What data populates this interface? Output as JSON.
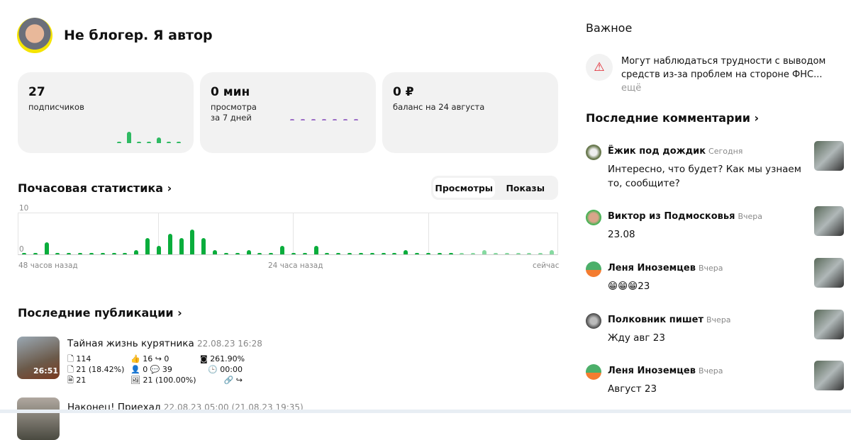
{
  "header": {
    "title": "Не блогер. Я автор"
  },
  "cards": [
    {
      "value": "27",
      "label": "подписчиков",
      "mini_bars": [
        0,
        3,
        0,
        0,
        1.5,
        0,
        0
      ],
      "color": "#2fba63"
    },
    {
      "value": "0 мин",
      "label": "просмотра",
      "label2": "за 7 дней",
      "mini_bars": [
        0,
        0,
        0,
        0,
        0,
        0,
        0
      ],
      "color": "#9b6dc6"
    },
    {
      "value": "0 ₽",
      "label": "баланс на 24 августа"
    }
  ],
  "hourly": {
    "title": "Почасовая статистика",
    "tabs": [
      "Просмотры",
      "Показы"
    ],
    "active_tab": "Просмотры"
  },
  "chart_data": {
    "type": "bar",
    "ylim": [
      0,
      10
    ],
    "y_ticks": [
      "10",
      "0"
    ],
    "x_ticks": [
      "48 часов назад",
      "24 часа назад",
      "сейчас"
    ],
    "values": [
      0,
      0,
      3,
      0,
      0,
      0,
      0,
      0,
      0,
      0,
      1,
      4,
      2,
      5,
      4,
      6,
      4,
      1,
      0,
      0,
      1,
      0,
      0,
      2,
      0,
      0,
      2,
      0,
      0,
      0,
      0,
      0,
      0,
      0,
      1,
      0,
      0,
      0,
      0,
      0,
      0,
      1,
      0,
      0,
      0,
      0,
      0,
      1
    ],
    "color": "#0aad3c",
    "future_color": "#86d9a0",
    "future_from_index": 39
  },
  "publications": {
    "title": "Последние публикации",
    "items": [
      {
        "title": "Тайная жизнь курятника",
        "date": "22.08.23 16:28",
        "duration": "26:51",
        "stats": [
          "114",
          "21 (18.42%)",
          "21",
          "16",
          "0",
          "0",
          "39",
          "21 (100.00%)",
          "261.90%",
          "00:00"
        ]
      },
      {
        "title": "Наконец! Приехал",
        "date": "22.08.23 05:00 (21.08.23 19:35)"
      }
    ]
  },
  "important": {
    "title": "Важное",
    "text": "Могут наблюдаться трудности с выводом средств из-за проблем на стороне ФНС...",
    "more": "ещё"
  },
  "comments": {
    "title": "Последние комментарии",
    "items": [
      {
        "name": "Ёжик под дождик",
        "date": "Сегодня",
        "text": "Интересно, что будет? Как мы узнаем то, сообщите?"
      },
      {
        "name": "Виктор из Подмосковья",
        "date": "Вчера",
        "text": "23.08"
      },
      {
        "name": "Леня Иноземцев",
        "date": "Вчера",
        "text": "😁😁😁23"
      },
      {
        "name": "Полковник пишет",
        "date": "Вчера",
        "text": "Жду авг 23"
      },
      {
        "name": "Леня Иноземцев",
        "date": "Вчера",
        "text": "Август 23"
      }
    ]
  }
}
